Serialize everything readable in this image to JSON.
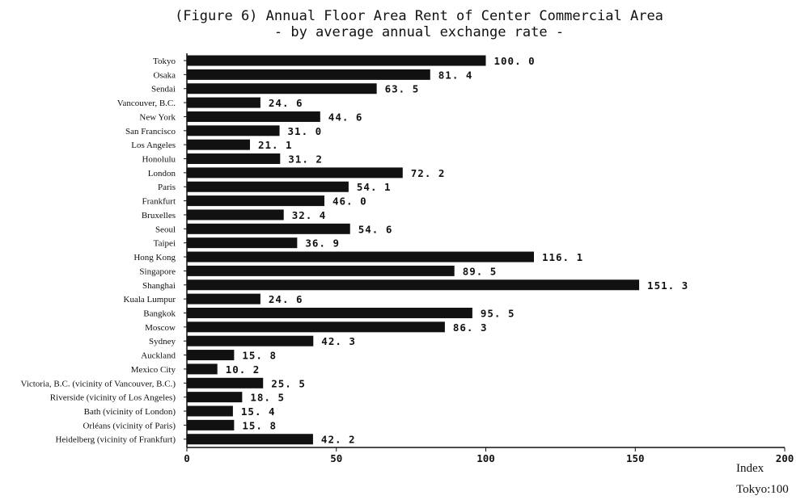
{
  "chart_data": {
    "type": "bar",
    "orientation": "horizontal",
    "title": "(Figure 6) Annual Floor Area Rent of Center Commercial Area",
    "subtitle": "- by average annual exchange rate -",
    "xlabel": "Index",
    "note": "Tokyo:100",
    "xlim": [
      0,
      200
    ],
    "xticks": [
      0,
      50,
      100,
      150,
      200
    ],
    "grid": false,
    "bar_color": "#111111",
    "categories": [
      "Tokyo",
      "Osaka",
      "Sendai",
      "Vancouver, B.C.",
      "New York",
      "San Francisco",
      "Los Angeles",
      "Honolulu",
      "London",
      "Paris",
      "Frankfurt",
      "Bruxelles",
      "Seoul",
      "Taipei",
      "Hong Kong",
      "Singapore",
      "Shanghai",
      "Kuala Lumpur",
      "Bangkok",
      "Moscow",
      "Sydney",
      "Auckland",
      "Mexico City",
      "Victoria, B.C. (vicinity of Vancouver, B.C.)",
      "Riverside (vicinity of Los Angeles)",
      "Bath (vicinity of London)",
      "Orléans (vicinity of Paris)",
      "Heidelberg (vicinity of Frankfurt)"
    ],
    "values": [
      100.0,
      81.4,
      63.5,
      24.6,
      44.6,
      31.0,
      21.1,
      31.2,
      72.2,
      54.1,
      46.0,
      32.4,
      54.6,
      36.9,
      116.1,
      89.5,
      151.3,
      24.6,
      95.5,
      86.3,
      42.3,
      15.8,
      10.2,
      25.5,
      18.5,
      15.4,
      15.8,
      42.2
    ],
    "value_labels": [
      "100. 0",
      "81. 4",
      "63. 5",
      "24. 6",
      "44. 6",
      "31. 0",
      "21. 1",
      "31. 2",
      "72. 2",
      "54. 1",
      "46. 0",
      "32. 4",
      "54. 6",
      "36. 9",
      "116. 1",
      "89. 5",
      "151. 3",
      "24. 6",
      "95. 5",
      "86. 3",
      "42. 3",
      "15. 8",
      "10. 2",
      "25. 5",
      "18. 5",
      "15. 4",
      "15. 8",
      "42. 2"
    ]
  }
}
